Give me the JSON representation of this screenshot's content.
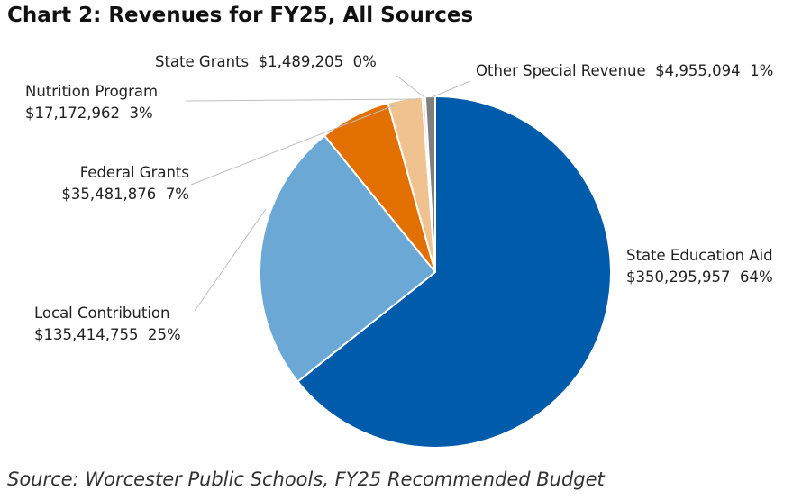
{
  "chart_data": {
    "type": "pie",
    "title": "Chart 2: Revenues for FY25, All Sources",
    "source": "Source: Worcester Public Schools, FY25 Recommended Budget",
    "slices": [
      {
        "label": "State Education Aid",
        "value": 350295957,
        "value_text": "$350,295,957",
        "percent": "64%",
        "color": "#005bab"
      },
      {
        "label": "Local Contribution",
        "value": 135414755,
        "value_text": "$135,414,755",
        "percent": "25%",
        "color": "#6ba8d5"
      },
      {
        "label": "Federal Grants",
        "value": 35481876,
        "value_text": "$35,481,876",
        "percent": "7%",
        "color": "#e27000"
      },
      {
        "label": "Nutrition Program",
        "value": 17172962,
        "value_text": "$17,172,962",
        "percent": "3%",
        "color": "#efc28f"
      },
      {
        "label": "State Grants",
        "value": 1489205,
        "value_text": "$1,489,205",
        "percent": "0%",
        "color": "#dcdcdc"
      },
      {
        "label": "Other Special Revenue",
        "value": 4955094,
        "value_text": "$4,955,094",
        "percent": "1%",
        "color": "#7f7f7f"
      }
    ],
    "start_angle": "top",
    "direction": "clockwise",
    "legend": "none"
  }
}
